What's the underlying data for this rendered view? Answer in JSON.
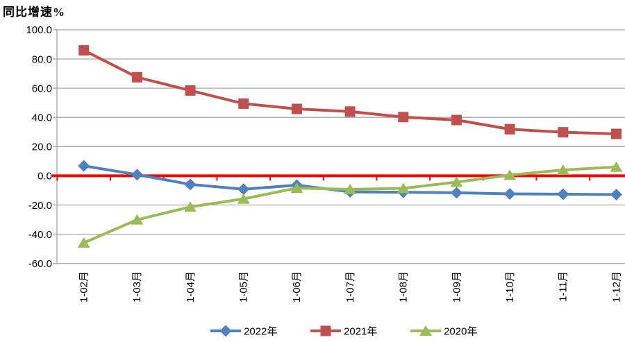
{
  "chart_data": {
    "type": "line",
    "title": "同比增速%",
    "categories": [
      "1-02月",
      "1-03月",
      "1-04月",
      "1-05月",
      "1-06月",
      "1-07月",
      "1-08月",
      "1-09月",
      "1-10月",
      "1-11月",
      "1-12月"
    ],
    "series": [
      {
        "name": "2022年",
        "marker": "diamond",
        "color": "#4F81BD",
        "values": [
          6.8,
          0.8,
          -5.9,
          -9.2,
          -6.4,
          -11.0,
          -11.3,
          -11.6,
          -12.4,
          -12.6,
          -12.9
        ]
      },
      {
        "name": "2021年",
        "marker": "square",
        "color": "#C0504D",
        "values": [
          85.9,
          67.5,
          58.4,
          49.4,
          45.8,
          44.0,
          40.2,
          38.2,
          31.9,
          29.8,
          28.7
        ]
      },
      {
        "name": "2020年",
        "marker": "triangle",
        "color": "#9BBB59",
        "values": [
          -45.9,
          -30.1,
          -21.3,
          -15.8,
          -8.4,
          -9.3,
          -8.6,
          -4.3,
          0.5,
          4.0,
          6.0
        ]
      }
    ],
    "xlabel": "",
    "ylabel": "同比增速%",
    "ylim": [
      -60,
      100
    ],
    "ytick_step": 20,
    "ytick_decimals": 1,
    "grid": true,
    "grid_color": "#A6A6A6",
    "axis_color": "#A6A6A6",
    "zero_line_color": "#FF0000",
    "legend_position": "bottom"
  }
}
